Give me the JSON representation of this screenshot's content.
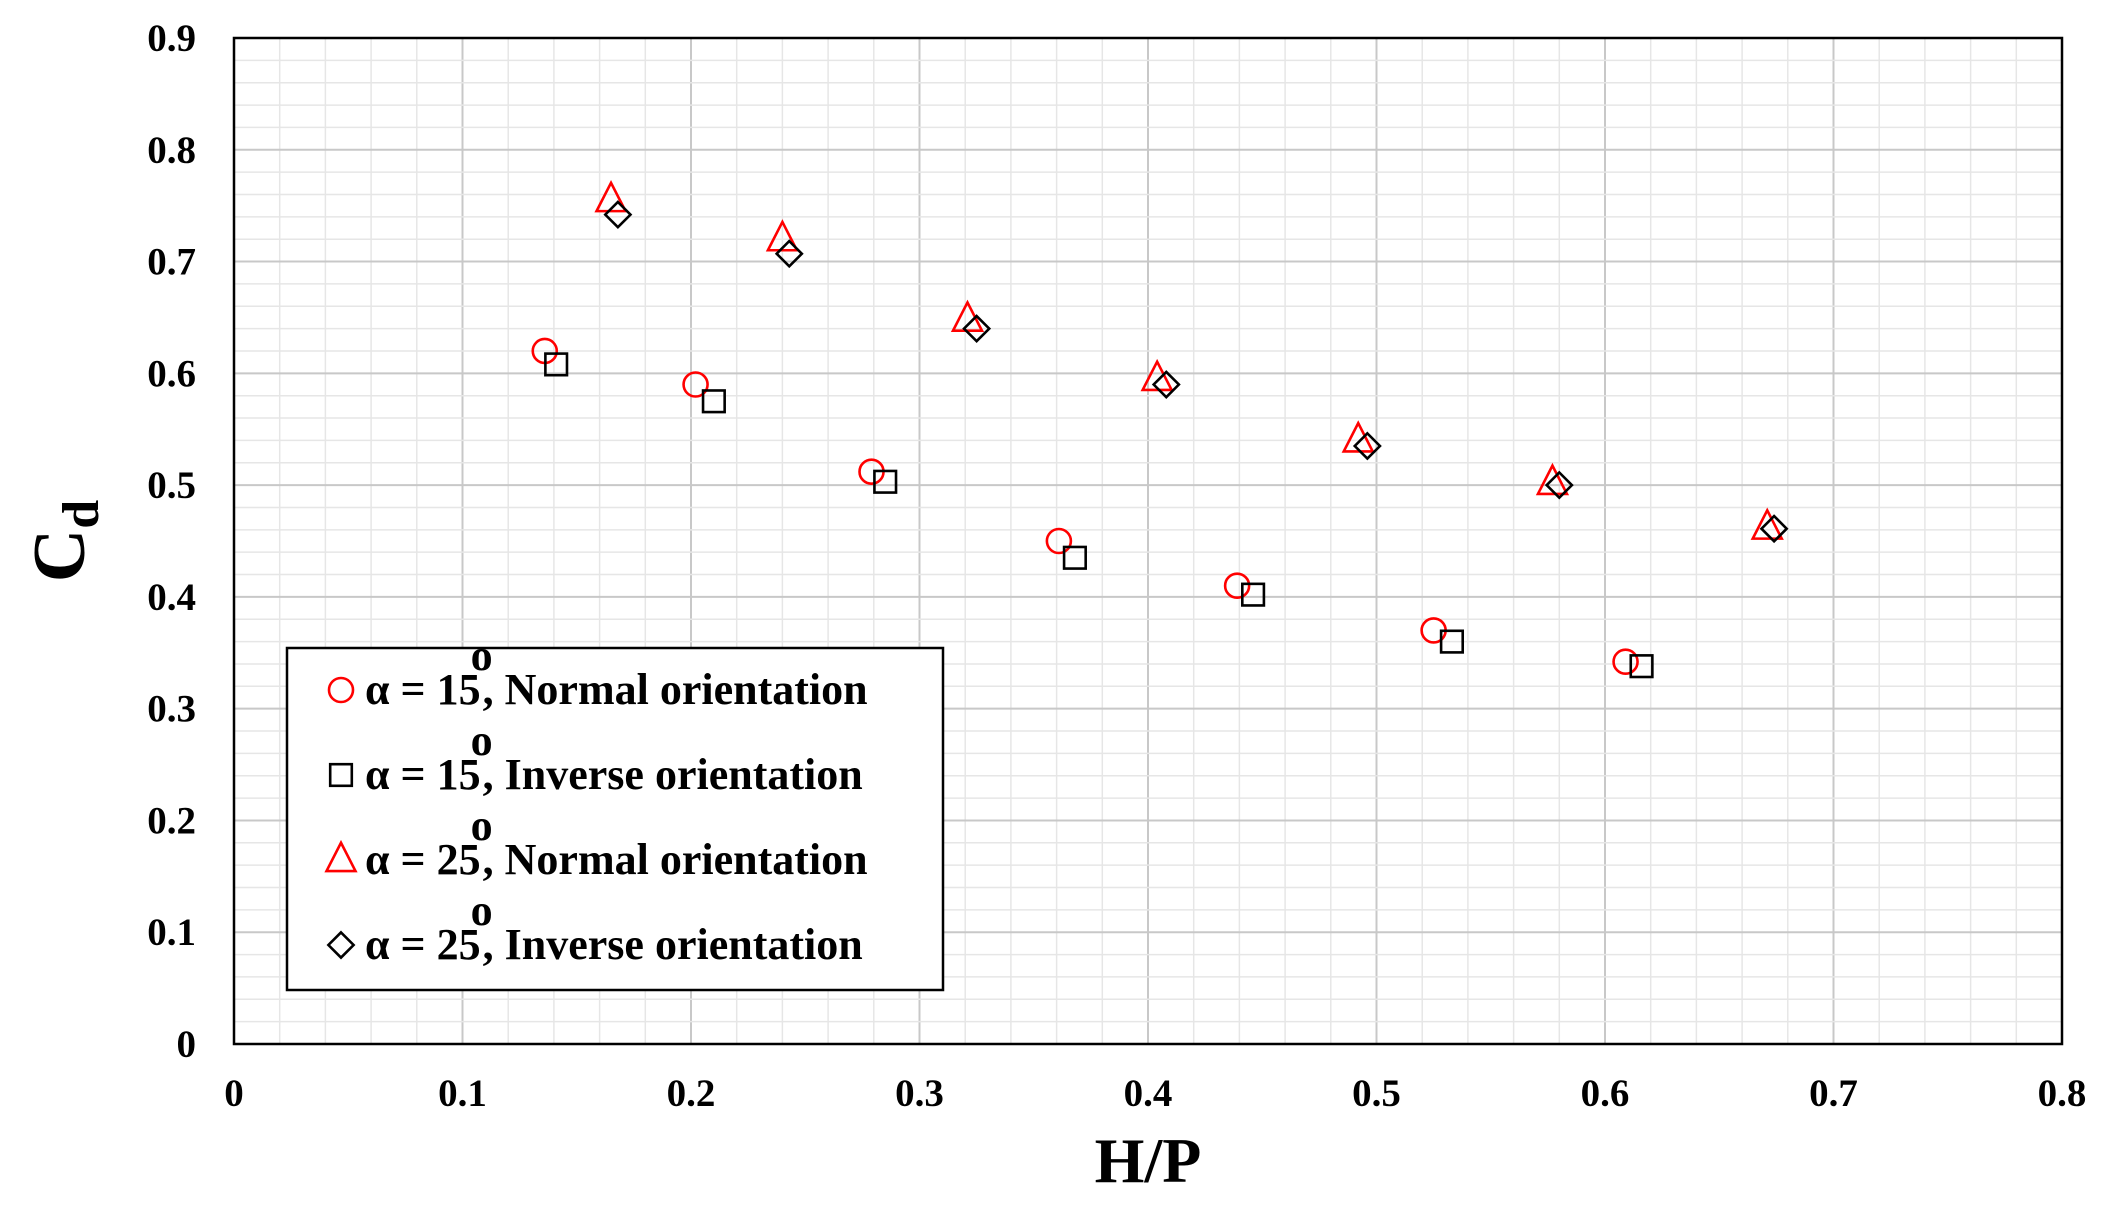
{
  "chart_data": {
    "type": "scatter",
    "title": "",
    "xlabel": "H/P",
    "ylabel_main": "C",
    "ylabel_sub": "d",
    "xlim": [
      0,
      0.8
    ],
    "ylim": [
      0,
      0.9
    ],
    "x_ticks": [
      "0",
      "0.1",
      "0.2",
      "0.3",
      "0.4",
      "0.5",
      "0.6",
      "0.7",
      "0.8"
    ],
    "y_ticks": [
      "0",
      "0.1",
      "0.2",
      "0.3",
      "0.4",
      "0.5",
      "0.6",
      "0.7",
      "0.8",
      "0.9"
    ],
    "grid": true,
    "legend_position": "bottom-left",
    "series": [
      {
        "name": "α = 15°, Normal orientation",
        "legend_alpha": "α = 15",
        "legend_label": ", Normal orientation",
        "marker": "circle",
        "color": "#ff0000",
        "x": [
          0.136,
          0.202,
          0.279,
          0.361,
          0.439,
          0.525,
          0.609
        ],
        "y": [
          0.62,
          0.59,
          0.512,
          0.45,
          0.41,
          0.37,
          0.342
        ]
      },
      {
        "name": "α = 15°, Inverse orientation",
        "legend_alpha": "α = 15",
        "legend_label": ", Inverse orientation",
        "marker": "square",
        "color": "#000000",
        "x": [
          0.141,
          0.21,
          0.285,
          0.368,
          0.446,
          0.533,
          0.616
        ],
        "y": [
          0.608,
          0.575,
          0.503,
          0.435,
          0.402,
          0.36,
          0.338
        ]
      },
      {
        "name": "α = 25°, Normal orientation",
        "legend_alpha": "α = 25",
        "legend_label": ", Normal orientation",
        "marker": "triangle",
        "color": "#ff0000",
        "x": [
          0.165,
          0.24,
          0.321,
          0.404,
          0.492,
          0.577,
          0.671
        ],
        "y": [
          0.755,
          0.72,
          0.648,
          0.595,
          0.54,
          0.502,
          0.462
        ]
      },
      {
        "name": "α = 25°, Inverse orientation",
        "legend_alpha": "α = 25",
        "legend_label": ", Inverse orientation",
        "marker": "diamond",
        "color": "#000000",
        "x": [
          0.168,
          0.243,
          0.325,
          0.408,
          0.496,
          0.58,
          0.674
        ],
        "y": [
          0.742,
          0.707,
          0.64,
          0.59,
          0.535,
          0.5,
          0.461
        ]
      }
    ],
    "degree_symbol": "o"
  }
}
